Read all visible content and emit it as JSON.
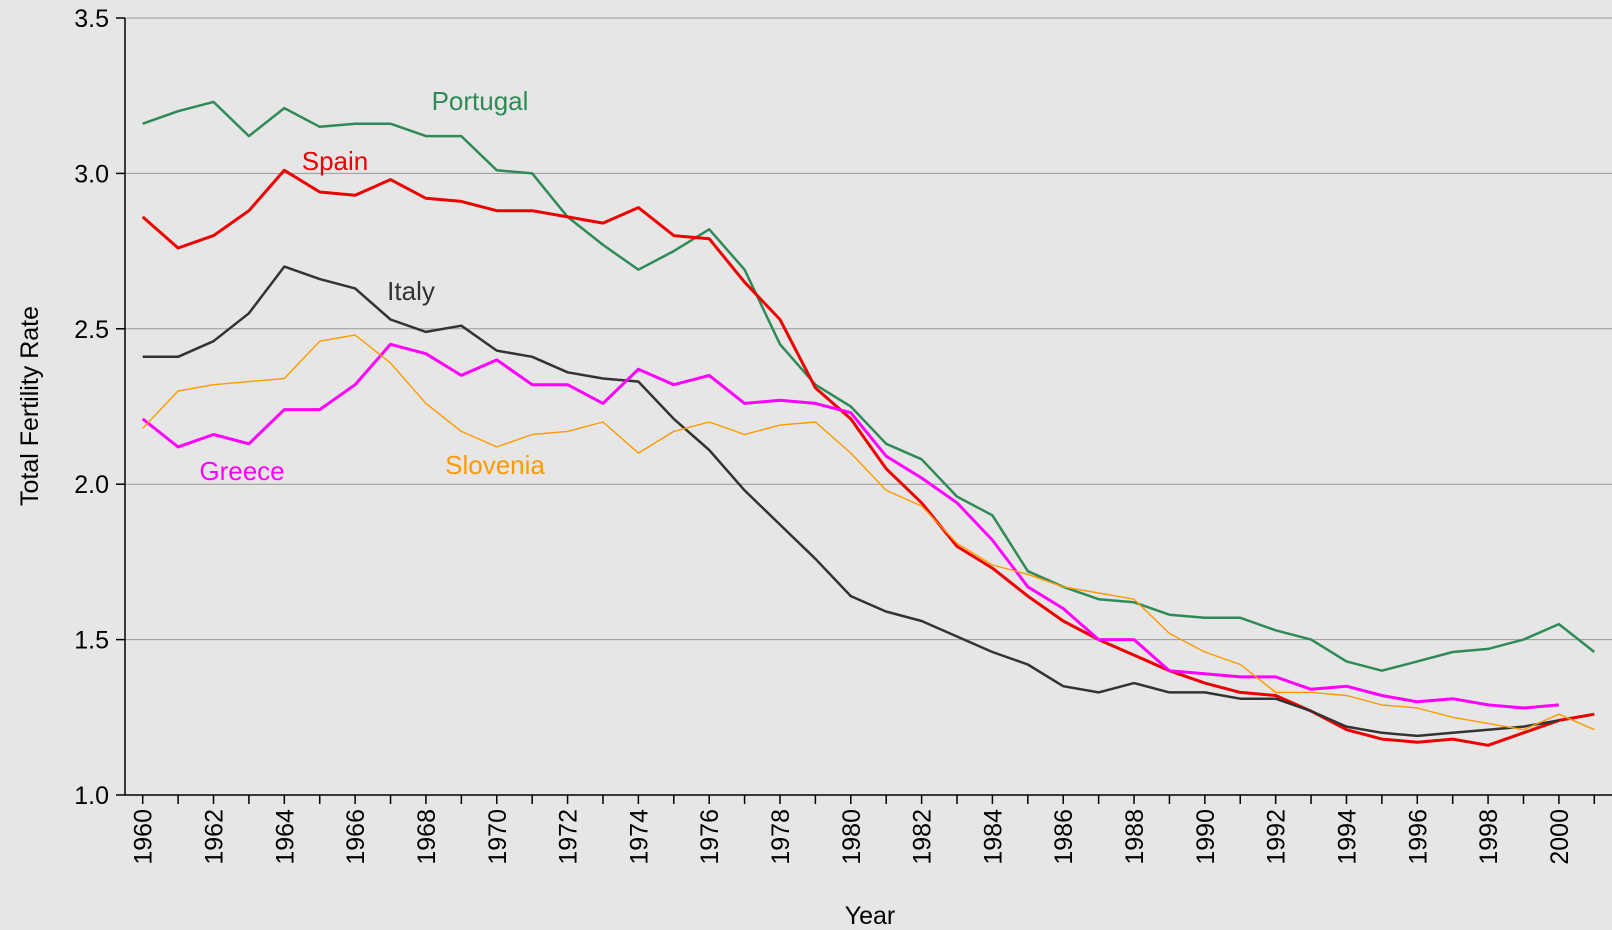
{
  "chart_data": {
    "type": "line",
    "xlabel": "Year",
    "ylabel": "Total Fertility Rate",
    "x": [
      1960,
      1961,
      1962,
      1963,
      1964,
      1965,
      1966,
      1967,
      1968,
      1969,
      1970,
      1971,
      1972,
      1973,
      1974,
      1975,
      1976,
      1977,
      1978,
      1979,
      1980,
      1981,
      1982,
      1983,
      1984,
      1985,
      1986,
      1987,
      1988,
      1989,
      1990,
      1991,
      1992,
      1993,
      1994,
      1995,
      1996,
      1997,
      1998,
      1999,
      2000,
      2001
    ],
    "xlim": [
      1959.5,
      2001.5
    ],
    "xticks": [
      1960,
      1962,
      1964,
      1966,
      1968,
      1970,
      1972,
      1974,
      1976,
      1978,
      1980,
      1982,
      1984,
      1986,
      1988,
      1990,
      1992,
      1994,
      1996,
      1998,
      2000
    ],
    "ylim": [
      1.0,
      3.5
    ],
    "yticks": [
      {
        "value": 1.0,
        "label": "1.0"
      },
      1.5,
      {
        "value": 2.0,
        "label": "2.0"
      },
      2.5,
      {
        "value": 3.0,
        "label": "3.0"
      },
      3.5
    ],
    "grid": true,
    "series": [
      {
        "name": "Portugal",
        "color": "#2e8b57",
        "values": [
          3.16,
          3.2,
          3.23,
          3.12,
          3.21,
          3.15,
          3.16,
          3.16,
          3.12,
          3.12,
          3.01,
          3.0,
          2.86,
          2.77,
          2.69,
          2.75,
          2.82,
          2.69,
          2.45,
          2.32,
          2.25,
          2.13,
          2.08,
          1.96,
          1.9,
          1.72,
          1.67,
          1.63,
          1.62,
          1.58,
          1.57,
          1.57,
          1.53,
          1.5,
          1.43,
          1.4,
          1.43,
          1.46,
          1.47,
          1.5,
          1.55,
          1.46
        ]
      },
      {
        "name": "Spain",
        "color": "#ee0000",
        "values": [
          2.86,
          2.76,
          2.8,
          2.88,
          3.01,
          2.94,
          2.93,
          2.98,
          2.92,
          2.91,
          2.88,
          2.88,
          2.86,
          2.84,
          2.89,
          2.8,
          2.79,
          2.65,
          2.53,
          2.31,
          2.21,
          2.05,
          1.94,
          1.8,
          1.73,
          1.64,
          1.56,
          1.5,
          1.45,
          1.4,
          1.36,
          1.33,
          1.32,
          1.27,
          1.21,
          1.18,
          1.17,
          1.18,
          1.16,
          1.2,
          1.24,
          1.26
        ]
      },
      {
        "name": "Italy",
        "color": "#333333",
        "values": [
          2.41,
          2.41,
          2.46,
          2.55,
          2.7,
          2.66,
          2.63,
          2.53,
          2.49,
          2.51,
          2.43,
          2.41,
          2.36,
          2.34,
          2.33,
          2.21,
          2.11,
          1.98,
          1.87,
          1.76,
          1.64,
          1.59,
          1.56,
          1.51,
          1.46,
          1.42,
          1.35,
          1.33,
          1.36,
          1.33,
          1.33,
          1.31,
          1.31,
          1.27,
          1.22,
          1.2,
          1.19,
          1.2,
          1.21,
          1.22,
          1.24,
          null
        ]
      },
      {
        "name": "Greece",
        "color": "#ff00ff",
        "values": [
          2.21,
          2.12,
          2.16,
          2.13,
          2.24,
          2.24,
          2.32,
          2.45,
          2.42,
          2.35,
          2.4,
          2.32,
          2.32,
          2.26,
          2.37,
          2.32,
          2.35,
          2.26,
          2.27,
          2.26,
          2.23,
          2.09,
          2.02,
          1.94,
          1.82,
          1.67,
          1.6,
          1.5,
          1.5,
          1.4,
          1.39,
          1.38,
          1.38,
          1.34,
          1.35,
          1.32,
          1.3,
          1.31,
          1.29,
          1.28,
          1.29,
          null
        ]
      },
      {
        "name": "Slovenia",
        "color": "#ff9900",
        "values": [
          2.18,
          2.3,
          2.32,
          2.33,
          2.34,
          2.46,
          2.48,
          2.39,
          2.26,
          2.17,
          2.12,
          2.16,
          2.17,
          2.2,
          2.1,
          2.17,
          2.2,
          2.16,
          2.19,
          2.2,
          2.1,
          1.98,
          1.93,
          1.81,
          1.74,
          1.71,
          1.67,
          1.65,
          1.63,
          1.52,
          1.46,
          1.42,
          1.33,
          1.33,
          1.32,
          1.29,
          1.28,
          1.25,
          1.23,
          1.21,
          1.26,
          1.21
        ]
      }
    ]
  }
}
